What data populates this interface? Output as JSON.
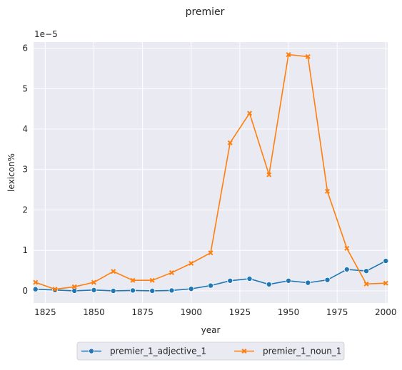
{
  "chart_data": {
    "type": "line",
    "title": "premier",
    "xlabel": "year",
    "ylabel": "lexicon%",
    "y_scale_label": "1e−5",
    "xlim": [
      1819,
      2001
    ],
    "ylim": [
      -0.3,
      6.15
    ],
    "x_ticks": [
      1825,
      1850,
      1875,
      1900,
      1925,
      1950,
      1975,
      2000
    ],
    "y_ticks": [
      0,
      1,
      2,
      3,
      4,
      5,
      6
    ],
    "grid": true,
    "legend_position": "bottom-center",
    "x": [
      1820,
      1830,
      1840,
      1850,
      1860,
      1870,
      1880,
      1890,
      1900,
      1910,
      1920,
      1930,
      1940,
      1950,
      1960,
      1970,
      1980,
      1990,
      2000
    ],
    "series": [
      {
        "name": "premier_1_adjective_1",
        "color": "#1f77b4",
        "marker": "circle",
        "values": [
          0.04,
          0.02,
          0.0,
          0.02,
          0.0,
          0.01,
          0.0,
          0.01,
          0.05,
          0.13,
          0.25,
          0.3,
          0.16,
          0.25,
          0.2,
          0.27,
          0.53,
          0.49,
          0.74
        ]
      },
      {
        "name": "premier_1_noun_1",
        "color": "#ff7f0e",
        "marker": "x",
        "values": [
          0.21,
          0.04,
          0.1,
          0.21,
          0.48,
          0.26,
          0.26,
          0.45,
          0.68,
          0.94,
          3.66,
          4.39,
          2.87,
          5.84,
          5.79,
          2.46,
          1.05,
          0.17,
          0.19
        ]
      }
    ]
  }
}
